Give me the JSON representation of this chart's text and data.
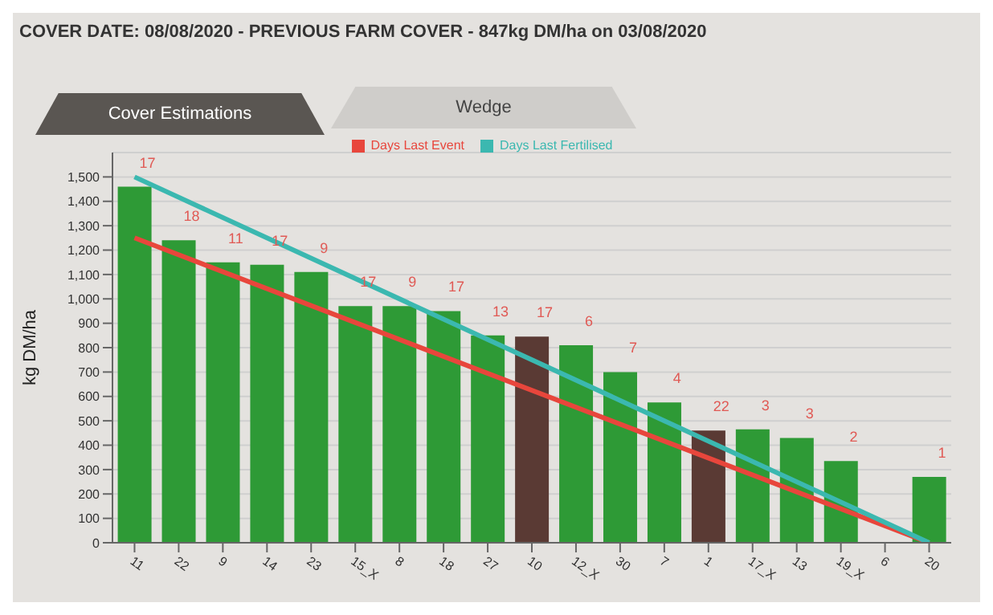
{
  "chart_data": {
    "type": "bar",
    "title": "COVER DATE: 08/08/2020  -  PREVIOUS FARM COVER - 847kg DM/ha on 03/08/2020",
    "annotations": [
      "Cover Estimations",
      "Wedge",
      {
        "text": "17",
        "x": "11",
        "y": 1460
      },
      {
        "text": "18",
        "x": "22",
        "y": 1240
      },
      {
        "text": "11",
        "x": "9",
        "y": 1150
      },
      {
        "text": "17",
        "x": "14",
        "y": 1140
      },
      {
        "text": "9",
        "x": "23",
        "y": 1110
      },
      {
        "text": "17",
        "x": "15_X",
        "y": 970
      },
      {
        "text": "9",
        "x": "8",
        "y": 970
      },
      {
        "text": "17",
        "x": "18",
        "y": 950
      },
      {
        "text": "13",
        "x": "27",
        "y": 850
      },
      {
        "text": "17",
        "x": "10",
        "y": 845
      },
      {
        "text": "6",
        "x": "12_X",
        "y": 810
      },
      {
        "text": "7",
        "x": "30",
        "y": 700
      },
      {
        "text": "4",
        "x": "7",
        "y": 575
      },
      {
        "text": "22",
        "x": "1",
        "y": 460
      },
      {
        "text": "3",
        "x": "17_X",
        "y": 465
      },
      {
        "text": "3",
        "x": "13",
        "y": 430
      },
      {
        "text": "2",
        "x": "19_X",
        "y": 335
      },
      {
        "text": "1",
        "x": "20",
        "y": 270
      }
    ],
    "ylabel": "kg DM/ha",
    "categories": [
      "11",
      "22",
      "9",
      "14",
      "23",
      "15_X",
      "8",
      "18",
      "27",
      "10",
      "12_X",
      "30",
      "7",
      "1",
      "17_X",
      "13",
      "19_X",
      "6",
      "20"
    ],
    "series": [
      {
        "colors": [
          "#2e9a36",
          "#2e9a36",
          "#2e9a36",
          "#2e9a36",
          "#2e9a36",
          "#2e9a36",
          "#2e9a36",
          "#2e9a36",
          "#2e9a36",
          "#5a3a34",
          "#2e9a36",
          "#2e9a36",
          "#2e9a36",
          "#5a3a34",
          "#2e9a36",
          "#2e9a36",
          "#2e9a36",
          "#2e9a36",
          "#2e9a36"
        ],
        "values": [
          1460,
          1240,
          1150,
          1140,
          1110,
          970,
          970,
          950,
          850,
          845,
          810,
          700,
          575,
          460,
          465,
          430,
          335,
          null,
          270
        ]
      },
      {
        "type": "line",
        "name": "Days Last Event",
        "color": "#e8463c",
        "values": [
          1250,
          null,
          null,
          null,
          null,
          null,
          null,
          null,
          null,
          null,
          null,
          null,
          null,
          null,
          null,
          null,
          null,
          null,
          0
        ]
      },
      {
        "type": "line",
        "name": "Days Last Fertilised",
        "color": "#3bb8b0",
        "values": [
          1500,
          null,
          null,
          null,
          null,
          null,
          null,
          null,
          null,
          null,
          null,
          null,
          null,
          null,
          null,
          null,
          null,
          null,
          0
        ]
      }
    ],
    "ylim": [
      0,
      1600
    ],
    "yticks": [
      0,
      100,
      200,
      300,
      400,
      500,
      600,
      700,
      800,
      900,
      {
        "value": 1000,
        "label": "1,000"
      },
      {
        "value": 1100,
        "label": "1,100"
      },
      {
        "value": 1200,
        "label": "1,200"
      },
      {
        "value": 1300,
        "label": "1,300"
      },
      {
        "value": 1400,
        "label": "1,400"
      },
      {
        "value": 1500,
        "label": "1,500"
      }
    ],
    "grid": "y",
    "legend": "top",
    "marker": "none"
  }
}
